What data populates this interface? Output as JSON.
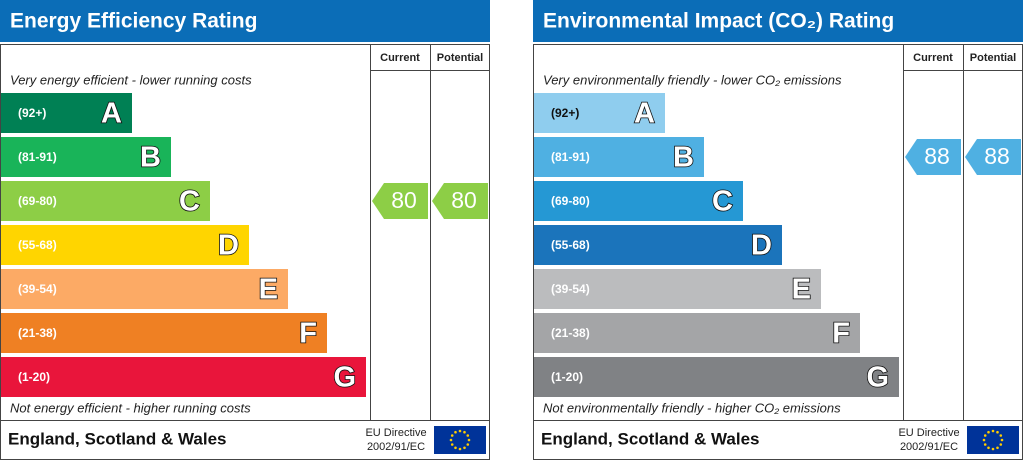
{
  "panels": [
    {
      "title": "Energy Efficiency Rating",
      "headers": [
        "Current",
        "Potential"
      ],
      "top_note": "Very energy efficient - lower running costs",
      "bottom_note": "Not energy efficient - higher running costs",
      "bands": [
        {
          "range": "(92+)",
          "letter": "A",
          "color": "#008054"
        },
        {
          "range": "(81-91)",
          "letter": "B",
          "color": "#19b459"
        },
        {
          "range": "(69-80)",
          "letter": "C",
          "color": "#8dce46"
        },
        {
          "range": "(55-68)",
          "letter": "D",
          "color": "#ffd500"
        },
        {
          "range": "(39-54)",
          "letter": "E",
          "color": "#fcaa65"
        },
        {
          "range": "(21-38)",
          "letter": "F",
          "color": "#ef8023"
        },
        {
          "range": "(1-20)",
          "letter": "G",
          "color": "#e9153b"
        }
      ],
      "current": 80,
      "potential": 80,
      "arrow_color": "#8dce46",
      "footer": "England, Scotland & Wales",
      "directive": [
        "EU Directive",
        "2002/91/EC"
      ]
    },
    {
      "title": "Environmental Impact (CO₂) Rating",
      "headers": [
        "Current",
        "Potential"
      ],
      "top_note": "Very environmentally friendly - lower CO₂ emissions",
      "bottom_note": "Not environmentally friendly - higher CO₂ emissions",
      "bands": [
        {
          "range": "(92+)",
          "letter": "A",
          "color": "#8fcdee"
        },
        {
          "range": "(81-91)",
          "letter": "B",
          "color": "#4fb0e2"
        },
        {
          "range": "(69-80)",
          "letter": "C",
          "color": "#2598d4"
        },
        {
          "range": "(55-68)",
          "letter": "D",
          "color": "#1b74bb"
        },
        {
          "range": "(39-54)",
          "letter": "E",
          "color": "#bbbcbe"
        },
        {
          "range": "(21-38)",
          "letter": "F",
          "color": "#a4a5a7"
        },
        {
          "range": "(1-20)",
          "letter": "G",
          "color": "#808285"
        }
      ],
      "current": 88,
      "potential": 88,
      "arrow_color": "#4fb0e2",
      "footer": "England, Scotland & Wales",
      "directive": [
        "EU Directive",
        "2002/91/EC"
      ]
    }
  ]
}
